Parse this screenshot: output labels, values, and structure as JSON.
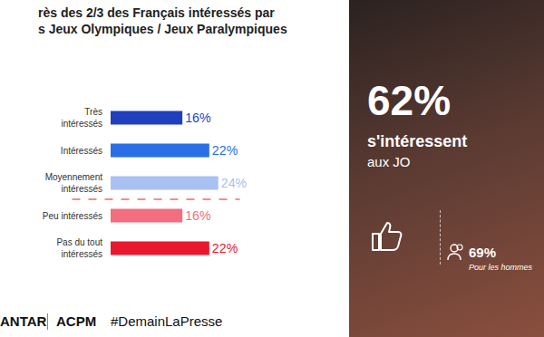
{
  "chart_data": {
    "type": "bar",
    "orientation": "horizontal",
    "title": "rès des 2/3 des Français intéressés par\ns Jeux Olympiques / Jeux Paralympiques",
    "categories": [
      "Très intéressés",
      "Intéressés",
      "Moyennement intéressés",
      "Peu intéressés",
      "Pas du tout intéressés"
    ],
    "values": [
      16,
      22,
      24,
      16,
      22
    ],
    "value_labels": [
      "16%",
      "22%",
      "24%",
      "16%",
      "22%"
    ],
    "colors": [
      "#1f3fbf",
      "#2a6fe6",
      "#a9c0f3",
      "#f26d80",
      "#e8182f"
    ],
    "data_labels": true,
    "tick_labels": "y",
    "grid": false,
    "panel": {
      "headline": {
        "value": 62,
        "label": "62%"
      },
      "lines": [
        "s'intéressent",
        "aux JO"
      ],
      "sub_value": {
        "value": 69,
        "label": "69%"
      },
      "sub_text": "Pour les hommes"
    },
    "footer": [
      "ANTAR",
      "ACPM",
      "#DemainLaPresse"
    ]
  }
}
